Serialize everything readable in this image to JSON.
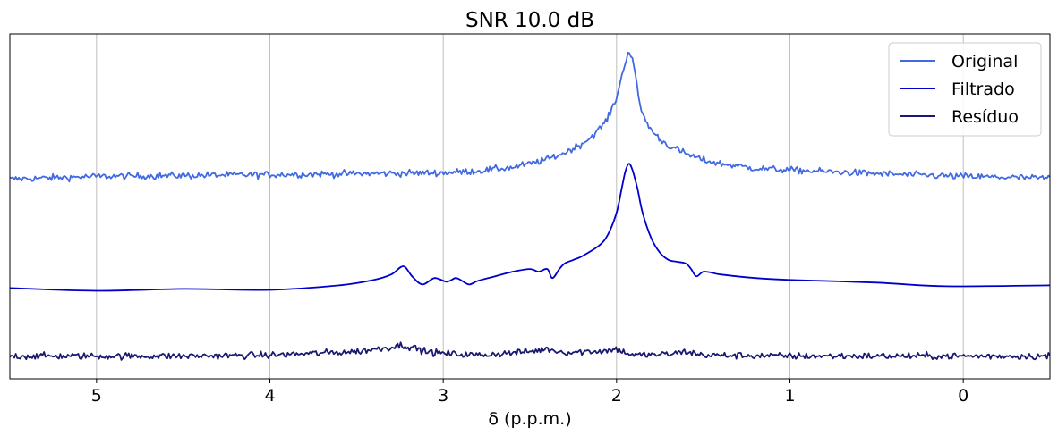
{
  "chart_data": {
    "type": "line",
    "title": "SNR 10.0 dB",
    "xlabel": "δ (p.p.m.)",
    "ylabel": "",
    "xlim": [
      5.5,
      -0.5
    ],
    "ylim": [
      -0.25,
      3.55
    ],
    "x_ticks": [
      5,
      4,
      3,
      2,
      1,
      0
    ],
    "x_tick_labels": [
      "5",
      "4",
      "3",
      "2",
      "1",
      "0"
    ],
    "y_ticks_visible": false,
    "grid": "vertical",
    "legend_position": "upper-right",
    "series": [
      {
        "name": "Original",
        "color": "#4169e1",
        "noisy": true,
        "noise_amplitude": 0.035,
        "x": [
          5.5,
          5.0,
          4.5,
          4.0,
          3.5,
          3.0,
          2.8,
          2.6,
          2.5,
          2.4,
          2.3,
          2.2,
          2.15,
          2.1,
          2.05,
          2.0,
          1.97,
          1.95,
          1.93,
          1.91,
          1.89,
          1.87,
          1.85,
          1.8,
          1.75,
          1.7,
          1.6,
          1.5,
          1.4,
          1.2,
          1.0,
          0.5,
          0.0,
          -0.5
        ],
        "y": [
          1.95,
          1.98,
          1.99,
          2.0,
          2.01,
          2.02,
          2.04,
          2.08,
          2.12,
          2.17,
          2.24,
          2.34,
          2.41,
          2.5,
          2.62,
          2.85,
          3.08,
          3.25,
          3.36,
          3.3,
          3.06,
          2.82,
          2.66,
          2.49,
          2.39,
          2.32,
          2.23,
          2.16,
          2.12,
          2.07,
          2.05,
          2.01,
          1.98,
          1.96
        ]
      },
      {
        "name": "Filtrado",
        "color": "#0000cd",
        "noisy": false,
        "x": [
          5.5,
          5.0,
          4.5,
          4.0,
          3.6,
          3.4,
          3.3,
          3.23,
          3.18,
          3.12,
          3.05,
          2.98,
          2.93,
          2.9,
          2.85,
          2.8,
          2.7,
          2.6,
          2.5,
          2.45,
          2.4,
          2.37,
          2.33,
          2.3,
          2.25,
          2.2,
          2.1,
          2.05,
          2.0,
          1.97,
          1.95,
          1.93,
          1.91,
          1.88,
          1.85,
          1.8,
          1.75,
          1.7,
          1.65,
          1.6,
          1.57,
          1.54,
          1.5,
          1.45,
          1.4,
          1.2,
          1.0,
          0.5,
          0.1,
          -0.5
        ],
        "y": [
          0.75,
          0.72,
          0.74,
          0.73,
          0.78,
          0.84,
          0.9,
          0.99,
          0.88,
          0.79,
          0.86,
          0.82,
          0.86,
          0.84,
          0.79,
          0.83,
          0.88,
          0.93,
          0.96,
          0.93,
          0.96,
          0.86,
          0.96,
          1.02,
          1.06,
          1.1,
          1.22,
          1.34,
          1.58,
          1.85,
          2.03,
          2.12,
          2.06,
          1.85,
          1.58,
          1.3,
          1.14,
          1.06,
          1.04,
          1.02,
          0.96,
          0.88,
          0.93,
          0.92,
          0.9,
          0.86,
          0.84,
          0.81,
          0.77,
          0.78
        ]
      },
      {
        "name": "Resíduo",
        "color": "#191970",
        "noisy": true,
        "noise_amplitude": 0.035,
        "x": [
          5.5,
          5.0,
          4.5,
          4.0,
          3.5,
          3.3,
          3.25,
          3.2,
          3.1,
          3.0,
          2.8,
          2.5,
          2.4,
          2.3,
          2.05,
          2.0,
          1.95,
          1.9,
          1.7,
          1.6,
          1.5,
          1.0,
          0.5,
          0.0,
          -0.5
        ],
        "y": [
          0.0,
          0.0,
          0.0,
          0.01,
          0.05,
          0.1,
          0.12,
          0.11,
          0.05,
          0.03,
          0.01,
          0.05,
          0.08,
          0.04,
          0.06,
          0.08,
          0.04,
          0.01,
          0.02,
          0.05,
          0.01,
          0.0,
          0.0,
          0.0,
          0.0
        ]
      }
    ]
  }
}
